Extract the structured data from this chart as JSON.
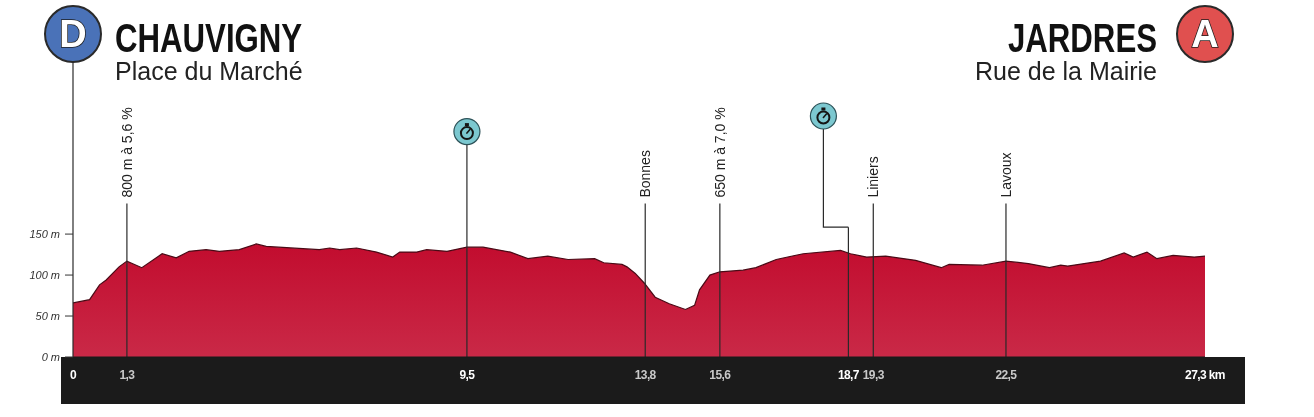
{
  "chart_data": {
    "type": "area",
    "annotations": [
      "D",
      "CHAUVIGNY",
      "Place du Marché",
      "A",
      "JARDRES",
      "Rue de la Mairie"
    ],
    "x": [
      0,
      0.4,
      0.64,
      0.8,
      1.11,
      1.3,
      1.66,
      2.15,
      2.49,
      2.8,
      3.21,
      3.53,
      4.01,
      4.42,
      4.66,
      5.94,
      6.19,
      6.43,
      6.84,
      7.32,
      7.71,
      7.88,
      8.29,
      8.53,
      9.02,
      9.5,
      9.89,
      10.55,
      10.97,
      11.45,
      11.94,
      12.58,
      12.8,
      13.24,
      13.36,
      13.56,
      13.78,
      14.04,
      14.38,
      14.77,
      14.99,
      15.11,
      15.36,
      15.6,
      16.16,
      16.47,
      16.96,
      17.61,
      18.51,
      18.75,
      19.14,
      19.6,
      20.32,
      20.94,
      21.13,
      21.92,
      22.5,
      23.04,
      23.55,
      23.82,
      23.99,
      24.78,
      25.35,
      25.57,
      25.9,
      26.14,
      26.53,
      27.04,
      27.3
    ],
    "values": [
      66,
      70,
      88,
      94,
      110,
      117,
      109,
      126,
      121,
      129,
      131,
      129,
      131,
      138,
      135,
      131,
      133,
      131,
      133,
      128,
      122,
      128,
      128,
      131,
      129,
      134,
      134,
      128,
      120,
      123,
      119,
      120,
      115,
      113,
      110,
      102,
      90,
      73,
      65,
      58,
      63,
      82,
      100,
      104,
      106,
      109,
      119,
      126,
      130,
      126,
      122,
      123,
      118,
      109,
      113,
      112,
      117,
      114,
      109,
      112,
      111,
      117,
      127,
      122,
      128,
      120,
      124,
      122,
      123
    ],
    "color": "#c20c2e",
    "xlim": [
      0,
      27.3
    ],
    "ylim": [
      0,
      360
    ],
    "xticks": [
      0,
      {
        "value": 1.3,
        "label": "1,3"
      },
      {
        "value": 9.5,
        "label": "9,5"
      },
      {
        "value": 13.8,
        "label": "13,8"
      },
      {
        "value": 15.6,
        "label": "15,6"
      },
      {
        "value": 18.7,
        "label": "18,7"
      },
      {
        "value": 19.3,
        "label": "19,3"
      },
      {
        "value": 22.5,
        "label": "22,5"
      },
      {
        "value": 27.3,
        "label": "27,3 km"
      }
    ],
    "yticks": [
      {
        "value": 0,
        "label": "0 m"
      },
      {
        "value": 50,
        "label": "50 m"
      },
      {
        "value": 100,
        "label": "100 m"
      },
      {
        "value": 150,
        "label": "150 m"
      }
    ],
    "ref_lines": [
      {
        "axis": "x",
        "value": 1.3,
        "label": "800 m à 5,6 %"
      },
      {
        "axis": "x",
        "value": 9.5
      },
      {
        "axis": "x",
        "value": 13.8,
        "label": "Bonnes"
      },
      {
        "axis": "x",
        "value": 15.6,
        "label": "650 m à 7,0 %"
      },
      {
        "axis": "x",
        "value": 18.7
      },
      {
        "axis": "x",
        "value": 19.3,
        "label": "Liniers"
      },
      {
        "axis": "x",
        "value": 22.5,
        "label": "Lavoux"
      }
    ]
  }
}
